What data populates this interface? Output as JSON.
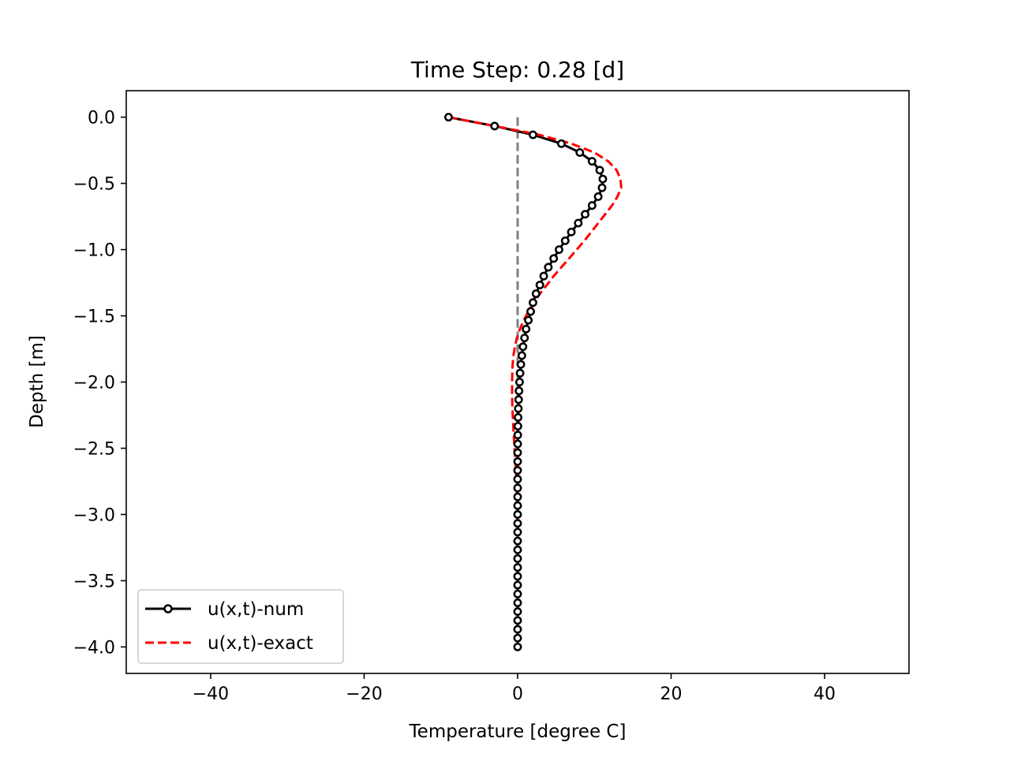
{
  "chart_data": {
    "type": "line",
    "title": "Time Step: 0.28 [d]",
    "xlabel": "Temperature [degree C]",
    "ylabel": "Depth [m]",
    "xlim": [
      -51,
      51
    ],
    "ylim": [
      -4.2,
      0.2
    ],
    "xticks": [
      {
        "value": -40,
        "label": "−40"
      },
      {
        "value": -20,
        "label": "−20"
      },
      {
        "value": 0,
        "label": "0"
      },
      {
        "value": 20,
        "label": "20"
      },
      {
        "value": 40,
        "label": "40"
      }
    ],
    "yticks": [
      {
        "value": 0.0,
        "label": "0.0"
      },
      {
        "value": -0.5,
        "label": "−0.5"
      },
      {
        "value": -1.0,
        "label": "−1.0"
      },
      {
        "value": -1.5,
        "label": "−1.5"
      },
      {
        "value": -2.0,
        "label": "−2.0"
      },
      {
        "value": -2.5,
        "label": "−2.5"
      },
      {
        "value": -3.0,
        "label": "−3.0"
      },
      {
        "value": -3.5,
        "label": "−3.5"
      },
      {
        "value": -4.0,
        "label": "−4.0"
      }
    ],
    "grid": false,
    "legend_position": "lower-left",
    "reference_line": {
      "x": 0,
      "color": "#808080",
      "style": "dashed"
    },
    "series": [
      {
        "name": "u(x,t)-num",
        "color": "#000000",
        "style": "solid-circles",
        "points": [
          [
            -9.0,
            0.0
          ],
          [
            -3.0,
            -0.067
          ],
          [
            2.0,
            -0.133
          ],
          [
            5.7,
            -0.2
          ],
          [
            8.1,
            -0.267
          ],
          [
            9.7,
            -0.333
          ],
          [
            10.7,
            -0.4
          ],
          [
            11.1,
            -0.467
          ],
          [
            11.0,
            -0.533
          ],
          [
            10.5,
            -0.6
          ],
          [
            9.7,
            -0.667
          ],
          [
            8.8,
            -0.733
          ],
          [
            7.9,
            -0.8
          ],
          [
            7.0,
            -0.867
          ],
          [
            6.2,
            -0.933
          ],
          [
            5.4,
            -1.0
          ],
          [
            4.7,
            -1.067
          ],
          [
            4.0,
            -1.133
          ],
          [
            3.4,
            -1.2
          ],
          [
            2.9,
            -1.267
          ],
          [
            2.4,
            -1.333
          ],
          [
            2.0,
            -1.4
          ],
          [
            1.7,
            -1.467
          ],
          [
            1.4,
            -1.533
          ],
          [
            1.1,
            -1.6
          ],
          [
            0.9,
            -1.667
          ],
          [
            0.7,
            -1.733
          ],
          [
            0.55,
            -1.8
          ],
          [
            0.42,
            -1.867
          ],
          [
            0.32,
            -1.933
          ],
          [
            0.25,
            -2.0
          ],
          [
            0.18,
            -2.067
          ],
          [
            0.13,
            -2.133
          ],
          [
            0.09,
            -2.2
          ],
          [
            0.06,
            -2.267
          ],
          [
            0.04,
            -2.333
          ],
          [
            0.02,
            -2.4
          ],
          [
            0.01,
            -2.467
          ],
          [
            0.0,
            -2.533
          ],
          [
            0.0,
            -2.6
          ],
          [
            0.0,
            -2.667
          ],
          [
            0.0,
            -2.733
          ],
          [
            0.0,
            -2.8
          ],
          [
            0.0,
            -2.867
          ],
          [
            0.0,
            -2.933
          ],
          [
            0.0,
            -3.0
          ],
          [
            0.0,
            -3.067
          ],
          [
            0.0,
            -3.133
          ],
          [
            0.0,
            -3.2
          ],
          [
            0.0,
            -3.267
          ],
          [
            0.0,
            -3.333
          ],
          [
            0.0,
            -3.4
          ],
          [
            0.0,
            -3.467
          ],
          [
            0.0,
            -3.533
          ],
          [
            0.0,
            -3.6
          ],
          [
            0.0,
            -3.667
          ],
          [
            0.0,
            -3.733
          ],
          [
            0.0,
            -3.8
          ],
          [
            0.0,
            -3.867
          ],
          [
            0.0,
            -3.933
          ],
          [
            0.0,
            -4.0
          ]
        ]
      },
      {
        "name": "u(x,t)-exact",
        "color": "#ff0000",
        "style": "dashed",
        "points": [
          [
            -9.0,
            0.0
          ],
          [
            -3.0,
            -0.067
          ],
          [
            2.8,
            -0.133
          ],
          [
            7.0,
            -0.2
          ],
          [
            10.0,
            -0.267
          ],
          [
            11.8,
            -0.333
          ],
          [
            12.9,
            -0.4
          ],
          [
            13.4,
            -0.467
          ],
          [
            13.5,
            -0.533
          ],
          [
            13.0,
            -0.6
          ],
          [
            12.3,
            -0.667
          ],
          [
            11.4,
            -0.733
          ],
          [
            10.5,
            -0.8
          ],
          [
            9.6,
            -0.867
          ],
          [
            8.7,
            -0.933
          ],
          [
            7.7,
            -1.0
          ],
          [
            6.7,
            -1.067
          ],
          [
            5.7,
            -1.133
          ],
          [
            4.7,
            -1.2
          ],
          [
            3.8,
            -1.267
          ],
          [
            2.9,
            -1.333
          ],
          [
            2.1,
            -1.4
          ],
          [
            1.4,
            -1.467
          ],
          [
            0.8,
            -1.533
          ],
          [
            0.3,
            -1.6
          ],
          [
            -0.1,
            -1.667
          ],
          [
            -0.35,
            -1.733
          ],
          [
            -0.55,
            -1.8
          ],
          [
            -0.65,
            -1.867
          ],
          [
            -0.7,
            -1.933
          ],
          [
            -0.72,
            -2.0
          ],
          [
            -0.72,
            -2.1
          ],
          [
            -0.68,
            -2.2
          ],
          [
            -0.6,
            -2.3
          ],
          [
            -0.5,
            -2.4
          ],
          [
            -0.4,
            -2.5
          ],
          [
            -0.3,
            -2.6
          ],
          [
            -0.2,
            -2.7
          ],
          [
            -0.12,
            -2.8
          ],
          [
            -0.06,
            -2.9
          ],
          [
            -0.02,
            -3.0
          ],
          [
            0.0,
            -3.2
          ],
          [
            0.0,
            -3.5
          ],
          [
            0.0,
            -3.8
          ],
          [
            0.0,
            -4.0
          ]
        ]
      }
    ]
  }
}
